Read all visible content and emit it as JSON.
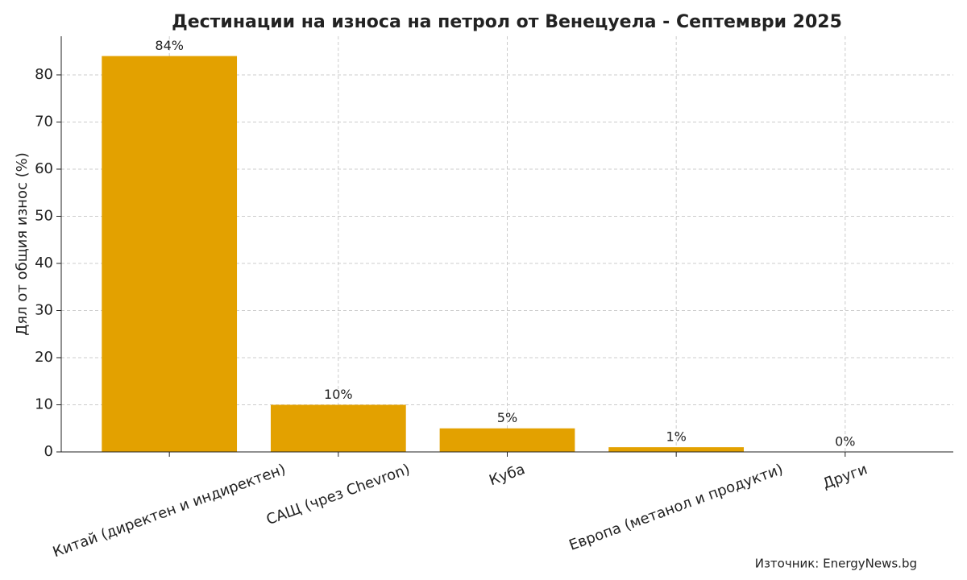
{
  "chart_data": {
    "type": "bar",
    "title": "Дестинации на износа на петрол от Венецуела - Септември 2025",
    "y_label": "Дял от общия износ (%)",
    "categories": [
      "Китай (директен и индиректен)",
      "САЩ (чрез Chevron)",
      "Куба",
      "Европа (метанол и продукти)",
      "Други"
    ],
    "values": [
      84,
      10,
      5,
      1,
      0
    ],
    "value_labels": [
      "84%",
      "10%",
      "5%",
      "1%",
      "0%"
    ],
    "color": "#e3a100",
    "ylim": [
      0,
      88.2
    ],
    "yticks": [
      0,
      10,
      20,
      30,
      40,
      50,
      60,
      70,
      80
    ],
    "grid": true,
    "source": "Източник: EnergyNews.bg"
  }
}
